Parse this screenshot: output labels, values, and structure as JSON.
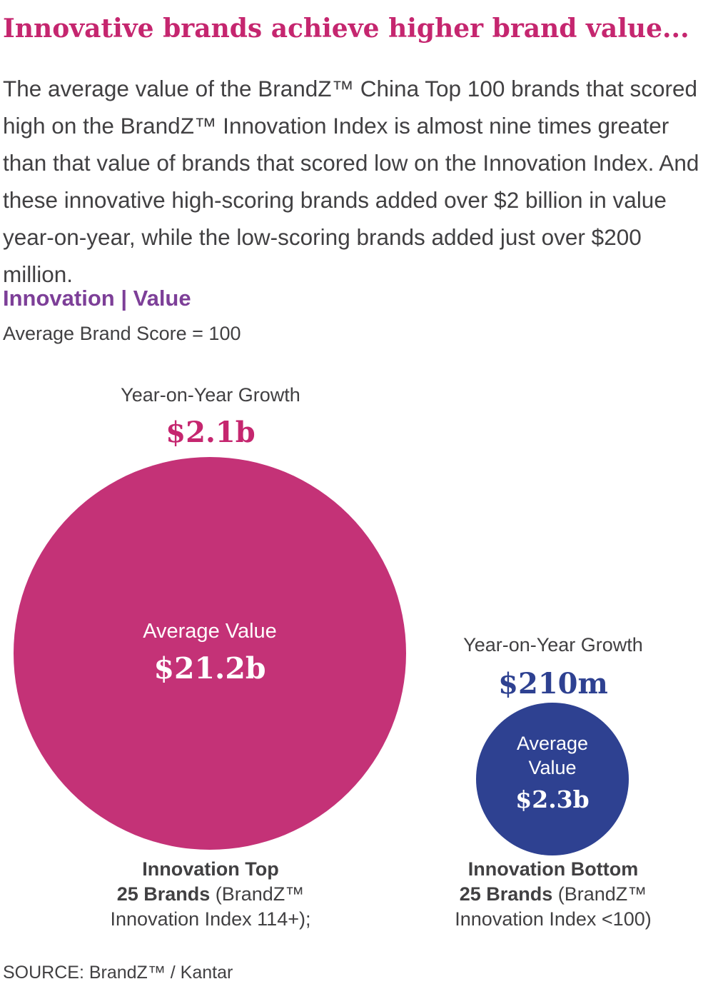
{
  "page": {
    "title": "Innovative brands achieve higher brand value...",
    "intro": "The average value of the BrandZ™ China Top 100 brands that scored high on the BrandZ™ Innovation Index is almost nine times greater than that value of brands that scored low on the Innovation Index. And these innovative high-scoring brands added over $2 billion in value year-on-year, while the low-scoring brands added just over $200 million.",
    "source": "SOURCE: BrandZ™ / Kantar"
  },
  "section": {
    "heading": "Innovation | Value",
    "subtitle": "Average Brand Score = 100"
  },
  "colors": {
    "title_magenta": "#c5266f",
    "heading_purple": "#7d3f98",
    "bubble_pink": "#c43277",
    "bubble_blue": "#2e4191",
    "body_text": "#414042"
  },
  "top_bubble": {
    "growth_label": "Year-on-Year Growth",
    "growth_value": "$2.1b",
    "value_label": "Average Value",
    "value": "$21.2b",
    "caption_bold1": "Innovation Top",
    "caption_bold2": "25 Brands",
    "caption_reg2": " (BrandZ™",
    "caption_line3": "Innovation Index 114+);"
  },
  "bottom_bubble": {
    "growth_label": "Year-on-Year Growth",
    "growth_value": "$210m",
    "value_label_line1": "Average",
    "value_label_line2": "Value",
    "value": "$2.3b",
    "caption_bold1": "Innovation Bottom",
    "caption_bold2": "25 Brands",
    "caption_reg2": " (BrandZ™",
    "caption_line3": "Innovation Index <100)"
  },
  "chart_data": {
    "type": "scatter",
    "subtype": "bubble-comparison",
    "title": "Innovation | Value",
    "subtitle": "Average Brand Score = 100",
    "series": [
      {
        "name": "Innovation Top 25 Brands (BrandZ™ Innovation Index 114+);",
        "average_value_label": "$21.2b",
        "average_value_billions_usd": 21.2,
        "yoy_growth_label": "$2.1b",
        "yoy_growth_billions_usd": 2.1,
        "bubble_color": "#c43277"
      },
      {
        "name": "Innovation Bottom 25 Brands (BrandZ™ Innovation Index <100)",
        "average_value_label": "$2.3b",
        "average_value_billions_usd": 2.3,
        "yoy_growth_label": "$210m",
        "yoy_growth_billions_usd": 0.21,
        "bubble_color": "#2e4191"
      }
    ],
    "legend_position": "none",
    "grid": false,
    "source": "SOURCE: BrandZ™ / Kantar"
  }
}
